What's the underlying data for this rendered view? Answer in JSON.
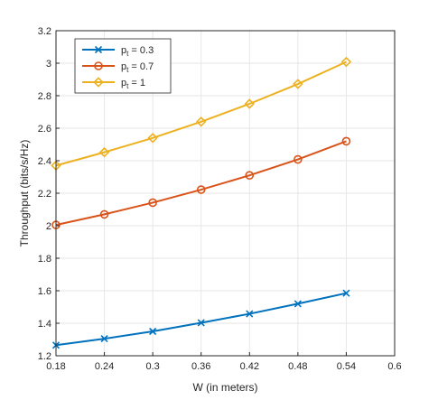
{
  "chart_data": {
    "type": "line",
    "title": "",
    "xlabel": "W (in meters)",
    "ylabel": "Throughput (bits/s/Hz)",
    "xlim": [
      0.18,
      0.6
    ],
    "ylim": [
      1.2,
      3.2
    ],
    "xticks": [
      "0.18",
      "0.24",
      "0.3",
      "0.36",
      "0.42",
      "0.48",
      "0.54",
      "0.6"
    ],
    "yticks": [
      "1.2",
      "1.4",
      "1.6",
      "1.8",
      "2",
      "2.2",
      "2.4",
      "2.6",
      "2.8",
      "3",
      "3.2"
    ],
    "grid": true,
    "legend_position": "top-left",
    "x": [
      0.18,
      0.24,
      0.3,
      0.36,
      0.42,
      0.48,
      0.54
    ],
    "series": [
      {
        "name": "p_t = 0.3",
        "legend_main": "p",
        "legend_sub": "t",
        "legend_rest": " = 0.3",
        "marker": "x",
        "color": "#0072BD",
        "values": [
          1.265,
          1.305,
          1.35,
          1.403,
          1.458,
          1.52,
          1.585
        ]
      },
      {
        "name": "p_t = 0.7",
        "legend_main": "p",
        "legend_sub": "t",
        "legend_rest": " = 0.7",
        "marker": "circle",
        "color": "#D95319",
        "values": [
          2.005,
          2.07,
          2.142,
          2.222,
          2.31,
          2.408,
          2.52
        ]
      },
      {
        "name": "p_t = 1",
        "legend_main": "p",
        "legend_sub": "t",
        "legend_rest": " = 1",
        "marker": "diamond",
        "color": "#EDB120",
        "values": [
          2.37,
          2.452,
          2.54,
          2.64,
          2.75,
          2.872,
          3.008
        ]
      }
    ]
  }
}
